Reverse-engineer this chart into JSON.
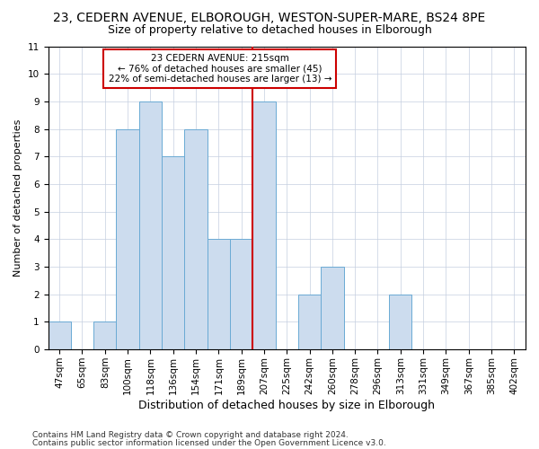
{
  "title1": "23, CEDERN AVENUE, ELBOROUGH, WESTON-SUPER-MARE, BS24 8PE",
  "title2": "Size of property relative to detached houses in Elborough",
  "xlabel": "Distribution of detached houses by size in Elborough",
  "ylabel": "Number of detached properties",
  "categories": [
    "47sqm",
    "65sqm",
    "83sqm",
    "100sqm",
    "118sqm",
    "136sqm",
    "154sqm",
    "171sqm",
    "189sqm",
    "207sqm",
    "225sqm",
    "242sqm",
    "260sqm",
    "278sqm",
    "296sqm",
    "313sqm",
    "331sqm",
    "349sqm",
    "367sqm",
    "385sqm",
    "402sqm"
  ],
  "values": [
    1,
    0,
    1,
    8,
    9,
    7,
    8,
    4,
    4,
    9,
    0,
    2,
    3,
    0,
    0,
    2,
    0,
    0,
    0,
    0,
    0
  ],
  "bar_color": "#ccdcee",
  "bar_edge_color": "#6aaad4",
  "vline_pos": 8.5,
  "vline_color": "#cc0000",
  "annotation_line1": "23 CEDERN AVENUE: 215sqm",
  "annotation_line2": "← 76% of detached houses are smaller (45)",
  "annotation_line3": "22% of semi-detached houses are larger (13) →",
  "annotation_box_color": "#cc0000",
  "ylim": [
    0,
    11
  ],
  "yticks": [
    0,
    1,
    2,
    3,
    4,
    5,
    6,
    7,
    8,
    9,
    10,
    11
  ],
  "background_color": "#ffffff",
  "footer1": "Contains HM Land Registry data © Crown copyright and database right 2024.",
  "footer2": "Contains public sector information licensed under the Open Government Licence v3.0.",
  "title1_fontsize": 10,
  "title2_fontsize": 9,
  "xlabel_fontsize": 9,
  "ylabel_fontsize": 8,
  "tick_fontsize": 7.5,
  "annotation_fontsize": 7.5,
  "footer_fontsize": 6.5
}
